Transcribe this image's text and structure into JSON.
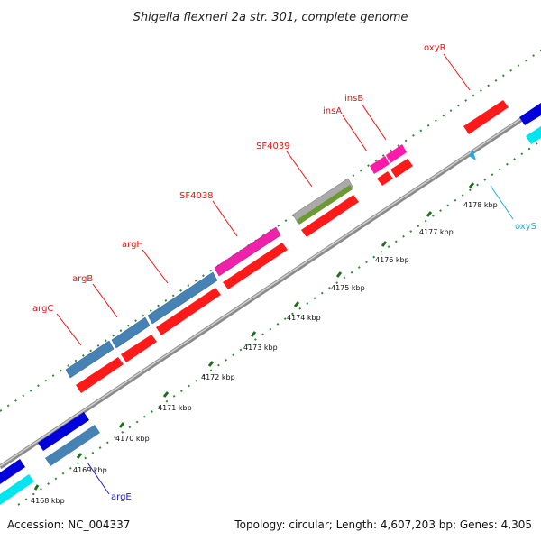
{
  "title": "Shigella flexneri 2a str. 301, complete genome",
  "footer": {
    "accession": "Accession: NC_004337",
    "stats": "Topology: circular; Length: 4,607,203 bp; Genes: 4,305"
  },
  "colors": {
    "backbone": "#8a8a8a",
    "tick": "#2e8b2e",
    "label_forward": "#ee1111",
    "label_reverse": "#1a8fd6",
    "label_blue": "#1a1acc"
  },
  "scale_labels": [
    "4168 kbp",
    "4169 kbp",
    "4170 kbp",
    "4171 kbp",
    "4172 kbp",
    "4173 kbp",
    "4174 kbp",
    "4175 kbp",
    "4176 kbp",
    "4177 kbp",
    "4178 kbp"
  ],
  "gene_labels": [
    {
      "id": "argC",
      "text": "argC",
      "color": "#ee1111"
    },
    {
      "id": "argB",
      "text": "argB",
      "color": "#ee1111"
    },
    {
      "id": "argH",
      "text": "argH",
      "color": "#ee1111"
    },
    {
      "id": "SF4038",
      "text": "SF4038",
      "color": "#ee1111"
    },
    {
      "id": "SF4039",
      "text": "SF4039",
      "color": "#ee1111"
    },
    {
      "id": "insA",
      "text": "insA",
      "color": "#ee1111"
    },
    {
      "id": "insB",
      "text": "insB",
      "color": "#ee1111"
    },
    {
      "id": "oxyR",
      "text": "oxyR",
      "color": "#ee1111"
    },
    {
      "id": "oxyS",
      "text": "oxyS",
      "color": "#22aadd"
    },
    {
      "id": "argE",
      "text": "argE",
      "color": "#1a1acc"
    }
  ]
}
